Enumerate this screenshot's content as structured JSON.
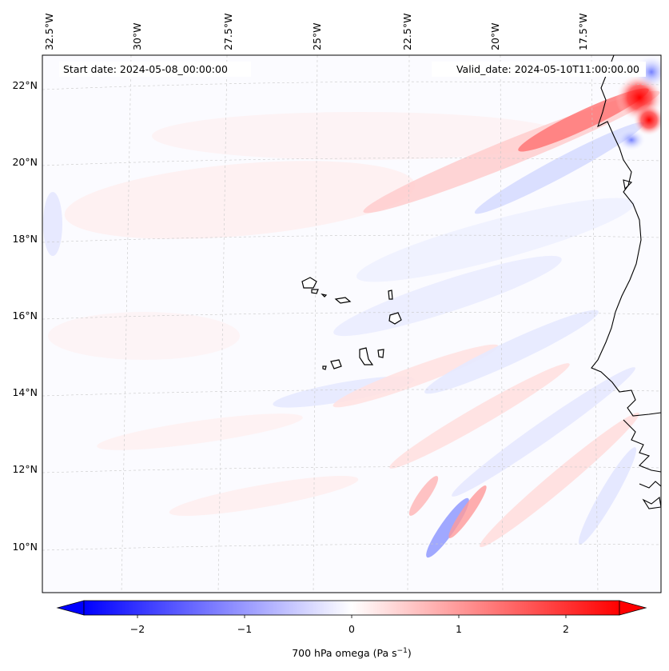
{
  "header": {
    "start_date": "Start date: 2024-05-08_00:00:00",
    "valid_date": "Valid_date: 2024-05-10T11:00:00.00"
  },
  "map": {
    "lon_labels": [
      "32.5°W",
      "30°W",
      "27.5°W",
      "25°W",
      "22.5°W",
      "20°W",
      "17.5°W"
    ],
    "lat_labels": [
      "22°N",
      "20°N",
      "18°N",
      "16°N",
      "14°N",
      "12°N",
      "10°N"
    ],
    "field": "700 hPa omega",
    "colormap": [
      "#0000ff",
      "#ffffff",
      "#ff0000"
    ]
  },
  "colorbar": {
    "ticks": [
      "−2",
      "−1",
      "0",
      "1",
      "2"
    ],
    "tick_values": [
      -2,
      -1,
      0,
      1,
      2
    ],
    "range": [
      -2.5,
      2.5
    ],
    "label_prefix": "700 hPa omega (Pa s",
    "label_exp": "−1",
    "label_suffix": ")"
  }
}
